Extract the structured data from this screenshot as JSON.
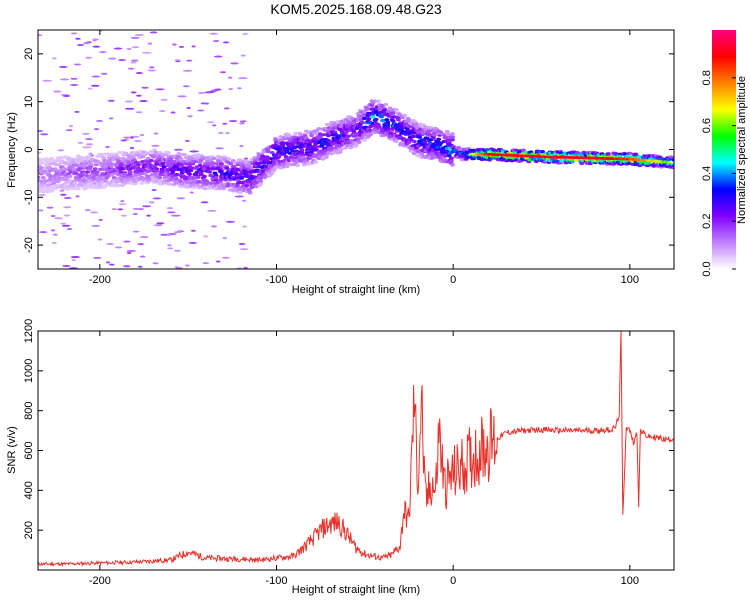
{
  "title": "KOM5.2025.168.09.48.G23",
  "colors": {
    "snr_line": "#e8312a",
    "frame": "#000000"
  },
  "chart_data": [
    {
      "type": "heatmap",
      "xlabel": "Height of straight line (km)",
      "ylabel": "Frequency (Hz)",
      "xlim": [
        -235,
        125
      ],
      "ylim": [
        -25,
        25
      ],
      "x_ticks": [
        -200,
        -100,
        0,
        100
      ],
      "y_ticks": [
        -20,
        -10,
        0,
        10,
        20
      ],
      "colorbar": {
        "label": "Normalized spectral amplitude",
        "range": [
          0,
          1
        ],
        "ticks": [
          0.0,
          0.2,
          0.4,
          0.6,
          0.8
        ],
        "tick_labels": [
          "0.0",
          "0.2",
          "0.4",
          "0.6",
          "0.8"
        ],
        "colormap": [
          "#ffffff",
          "#c080ff",
          "#8000ff",
          "#0000ff",
          "#00ffff",
          "#00ff00",
          "#ffff00",
          "#ff8000",
          "#ff0000",
          "#ff0080"
        ]
      },
      "ridge": [
        {
          "x": -235,
          "y": -5.5,
          "a": 0.15
        },
        {
          "x": -200,
          "y": -4.5,
          "a": 0.2
        },
        {
          "x": -170,
          "y": -3.5,
          "a": 0.25
        },
        {
          "x": -150,
          "y": -4.5,
          "a": 0.3
        },
        {
          "x": -130,
          "y": -5,
          "a": 0.3
        },
        {
          "x": -115,
          "y": -6,
          "a": 0.35
        },
        {
          "x": -100,
          "y": -0.5,
          "a": 0.35
        },
        {
          "x": -80,
          "y": 0.5,
          "a": 0.35
        },
        {
          "x": -70,
          "y": 2,
          "a": 0.35
        },
        {
          "x": -55,
          "y": 4,
          "a": 0.3
        },
        {
          "x": -45,
          "y": 7,
          "a": 0.45
        },
        {
          "x": -35,
          "y": 5.5,
          "a": 0.4
        },
        {
          "x": -20,
          "y": 2,
          "a": 0.35
        },
        {
          "x": -5,
          "y": 0.5,
          "a": 0.4
        },
        {
          "x": 5,
          "y": -1,
          "a": 0.45
        },
        {
          "x": 20,
          "y": -1,
          "a": 0.9
        },
        {
          "x": 50,
          "y": -1.5,
          "a": 0.92
        },
        {
          "x": 80,
          "y": -1.8,
          "a": 0.9
        },
        {
          "x": 100,
          "y": -2,
          "a": 0.85
        },
        {
          "x": 125,
          "y": -2.8,
          "a": 0.55
        }
      ]
    },
    {
      "type": "line",
      "xlabel": "Height of straight line (km)",
      "ylabel": "SNR (v/v)",
      "xlim": [
        -235,
        125
      ],
      "ylim": [
        0,
        1200
      ],
      "x_ticks": [
        -200,
        -100,
        0,
        100
      ],
      "y_ticks": [
        200,
        400,
        600,
        800,
        1000,
        1200
      ],
      "series": [
        {
          "x": [
            -235,
            -220,
            -200,
            -180,
            -160,
            -150,
            -140,
            -120,
            -110,
            -100,
            -90,
            -80,
            -75,
            -70,
            -65,
            -60,
            -55,
            -50,
            -45,
            -40,
            -35,
            -30,
            -28,
            -25,
            -22,
            -20,
            -18,
            -16,
            -15,
            -12,
            -10,
            -8,
            -5,
            0,
            5,
            10,
            15,
            20,
            25,
            30,
            40,
            50,
            60,
            70,
            80,
            90,
            92,
            94,
            95,
            96,
            98,
            100,
            102,
            104,
            105,
            106,
            110,
            115,
            120,
            125
          ],
          "y": [
            30,
            30,
            35,
            40,
            50,
            90,
            60,
            55,
            50,
            60,
            70,
            150,
            200,
            230,
            240,
            180,
            110,
            80,
            70,
            60,
            75,
            120,
            300,
            250,
            870,
            430,
            860,
            380,
            350,
            450,
            380,
            700,
            420,
            480,
            520,
            560,
            600,
            630,
            660,
            690,
            700,
            705,
            700,
            700,
            700,
            705,
            720,
            780,
            1200,
            280,
            720,
            700,
            640,
            690,
            330,
            700,
            670,
            665,
            655,
            660
          ]
        }
      ]
    }
  ]
}
